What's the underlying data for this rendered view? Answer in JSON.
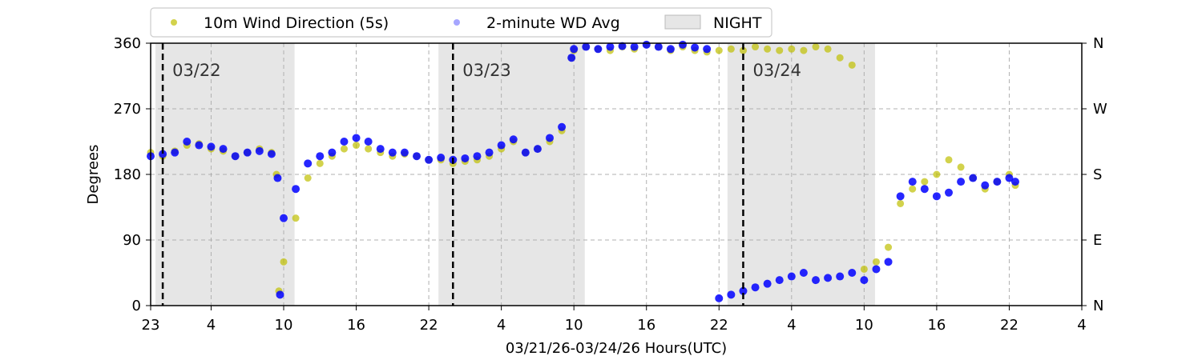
{
  "chart_data": {
    "type": "scatter",
    "xlabel": "03/21/26-03/24/26  Hours(UTC)",
    "ylabel": "Degrees",
    "x_unit": "hours (UTC)",
    "x_range_hours": [
      23,
      100
    ],
    "ylim": [
      0,
      360
    ],
    "x_ticks": [
      {
        "hour": 23,
        "label": "23"
      },
      {
        "hour": 28,
        "label": "4"
      },
      {
        "hour": 34,
        "label": "10"
      },
      {
        "hour": 40,
        "label": "16"
      },
      {
        "hour": 46,
        "label": "22"
      },
      {
        "hour": 52,
        "label": "4"
      },
      {
        "hour": 58,
        "label": "10"
      },
      {
        "hour": 64,
        "label": "16"
      },
      {
        "hour": 70,
        "label": "22"
      },
      {
        "hour": 76,
        "label": "4"
      },
      {
        "hour": 82,
        "label": "10"
      },
      {
        "hour": 88,
        "label": "16"
      },
      {
        "hour": 94,
        "label": "22"
      },
      {
        "hour": 100,
        "label": "4"
      }
    ],
    "y_ticks_left": [
      {
        "value": 0,
        "label": "0"
      },
      {
        "value": 90,
        "label": "90"
      },
      {
        "value": 180,
        "label": "180"
      },
      {
        "value": 270,
        "label": "270"
      },
      {
        "value": 360,
        "label": "360"
      }
    ],
    "y_ticks_right": [
      {
        "value": 0,
        "label": "N"
      },
      {
        "value": 90,
        "label": "E"
      },
      {
        "value": 180,
        "label": "S"
      },
      {
        "value": 270,
        "label": "W"
      },
      {
        "value": 360,
        "label": "N"
      }
    ],
    "grid": true,
    "legend_position": "top",
    "legend": [
      {
        "label": "10m Wind Direction (5s)",
        "color": "#bfbf00",
        "kind": "marker"
      },
      {
        "label": "2-minute WD Avg",
        "color": "#0000ff",
        "kind": "marker"
      },
      {
        "label": "NIGHT",
        "color": "#e6e6e6",
        "kind": "patch"
      }
    ],
    "night_periods": [
      [
        23.4,
        34.9
      ],
      [
        46.8,
        58.9
      ],
      [
        70.7,
        82.9
      ]
    ],
    "day_boundaries": [
      {
        "hour": 24,
        "label": "03/22"
      },
      {
        "hour": 48,
        "label": "03/23"
      },
      {
        "hour": 72,
        "label": "03/24"
      }
    ],
    "series": [
      {
        "name": "10m Wind Direction (5s)",
        "color": "#bfbf00",
        "x": [
          23,
          24,
          25,
          26,
          27,
          28,
          29,
          30,
          31,
          32,
          33,
          33.4,
          33.6,
          34,
          35,
          36,
          37,
          38,
          39,
          40,
          41,
          42,
          43,
          44,
          45,
          46,
          47,
          48,
          49,
          50,
          51,
          52,
          53,
          54,
          55,
          56,
          57,
          57.8,
          58,
          59,
          60,
          61,
          62,
          63,
          64,
          65,
          66,
          67,
          68,
          69,
          70,
          71,
          72,
          73,
          74,
          75,
          76,
          77,
          78,
          79,
          80,
          81,
          82,
          83,
          84,
          85,
          86,
          87,
          88,
          89,
          90,
          91,
          92,
          93,
          94,
          94.5
        ],
        "y": [
          210,
          205,
          212,
          220,
          222,
          215,
          212,
          205,
          210,
          215,
          210,
          180,
          20,
          60,
          120,
          175,
          195,
          205,
          215,
          220,
          215,
          210,
          205,
          208,
          205,
          200,
          200,
          195,
          198,
          200,
          205,
          215,
          225,
          210,
          215,
          225,
          240,
          340,
          350,
          355,
          352,
          350,
          355,
          352,
          358,
          355,
          350,
          355,
          350,
          348,
          350,
          352,
          350,
          355,
          352,
          350,
          352,
          350,
          355,
          352,
          340,
          330,
          50,
          60,
          80,
          140,
          160,
          170,
          180,
          200,
          190,
          175,
          160,
          170,
          180,
          165
        ]
      },
      {
        "name": "2-minute WD Avg",
        "color": "#0000ff",
        "x": [
          23,
          24,
          25,
          26,
          27,
          28,
          29,
          30,
          31,
          32,
          33,
          33.5,
          33.7,
          34,
          35,
          36,
          37,
          38,
          39,
          40,
          41,
          42,
          43,
          44,
          45,
          46,
          47,
          48,
          49,
          50,
          51,
          52,
          53,
          54,
          55,
          56,
          57,
          57.8,
          58,
          59,
          60,
          61,
          62,
          63,
          64,
          65,
          66,
          67,
          68,
          69,
          70,
          71,
          72,
          73,
          74,
          75,
          76,
          77,
          78,
          79,
          80,
          81,
          82,
          83,
          84,
          85,
          86,
          87,
          88,
          89,
          90,
          91,
          92,
          93,
          94,
          94.5
        ],
        "y": [
          205,
          208,
          210,
          225,
          220,
          218,
          215,
          205,
          210,
          212,
          208,
          175,
          15,
          120,
          160,
          195,
          205,
          210,
          225,
          230,
          225,
          215,
          210,
          210,
          205,
          200,
          203,
          200,
          202,
          205,
          210,
          220,
          228,
          210,
          215,
          230,
          245,
          340,
          352,
          355,
          352,
          355,
          356,
          355,
          358,
          355,
          352,
          358,
          354,
          352,
          10,
          15,
          20,
          25,
          30,
          35,
          40,
          45,
          35,
          38,
          40,
          45,
          35,
          50,
          60,
          150,
          170,
          160,
          150,
          155,
          170,
          175,
          165,
          170,
          175,
          170
        ]
      }
    ]
  }
}
